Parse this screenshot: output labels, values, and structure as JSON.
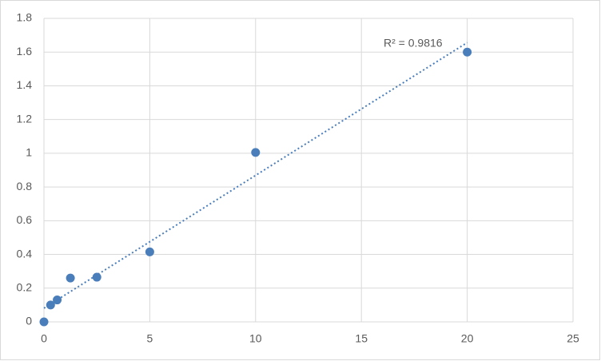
{
  "chart_data": {
    "type": "scatter",
    "annotation": "R² = 0.9816",
    "series": [
      {
        "color": "#4a7ebb",
        "x": [
          0,
          0.313,
          0.625,
          1.25,
          2.5,
          5,
          10,
          20
        ],
        "values": [
          0,
          0.1,
          0.13,
          0.26,
          0.265,
          0.415,
          1.005,
          1.6
        ]
      }
    ],
    "trendline": "linear",
    "xlim": [
      0,
      25
    ],
    "xticks": [
      0,
      5,
      10,
      15,
      20,
      25
    ],
    "ylim": [
      0,
      1.8
    ],
    "yticks": [
      0,
      0.2,
      0.4,
      0.6,
      0.8,
      1,
      1.2,
      1.4,
      1.6,
      1.8
    ],
    "grid": true
  }
}
